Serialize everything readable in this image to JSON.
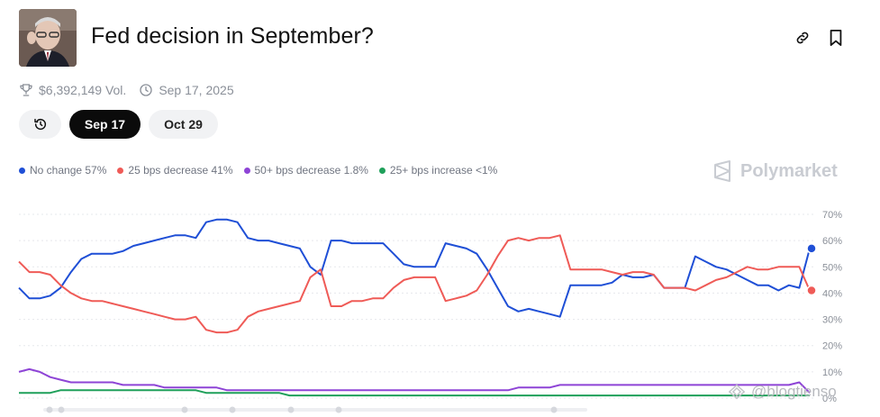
{
  "header": {
    "title": "Fed decision in September?",
    "avatar_icon": "portrait-photo"
  },
  "meta": {
    "volume": "$6,392,149 Vol.",
    "date": "Sep 17, 2025"
  },
  "tabs": [
    {
      "label": "",
      "icon": "history-icon"
    },
    {
      "label": "Sep 17",
      "active": true
    },
    {
      "label": "Oct 29"
    }
  ],
  "legend": [
    {
      "label": "No change 57%",
      "color": "#1f4fd6"
    },
    {
      "label": "25 bps decrease 41%",
      "color": "#ef5b57"
    },
    {
      "label": "50+ bps decrease 1.8%",
      "color": "#8e44d6"
    },
    {
      "label": "25+ bps increase <1%",
      "color": "#1fa05a"
    }
  ],
  "brand": "Polymarket",
  "watermark": "@blogtienso",
  "chart_data": {
    "type": "line",
    "y_ticks": [
      "70%",
      "60%",
      "50%",
      "40%",
      "30%",
      "20%",
      "10%",
      "0%"
    ],
    "ylim": [
      0,
      70
    ],
    "grid": true,
    "series": [
      {
        "name": "No change",
        "color": "#1f4fd6",
        "values": [
          42,
          38,
          38,
          39,
          42,
          48,
          53,
          55,
          55,
          55,
          56,
          58,
          59,
          60,
          61,
          62,
          62,
          61,
          67,
          68,
          68,
          67,
          61,
          60,
          60,
          59,
          58,
          57,
          50,
          47,
          60,
          60,
          59,
          59,
          59,
          59,
          55,
          51,
          50,
          50,
          50,
          59,
          58,
          57,
          55,
          49,
          42,
          35,
          33,
          34,
          33,
          32,
          31,
          43,
          43,
          43,
          43,
          44,
          47,
          46,
          46,
          47,
          42,
          42,
          42,
          54,
          52,
          50,
          49,
          47,
          45,
          43,
          43,
          41,
          43,
          42,
          57
        ]
      },
      {
        "name": "25 bps decrease",
        "color": "#ef5b57",
        "values": [
          52,
          48,
          48,
          47,
          43,
          40,
          38,
          37,
          37,
          36,
          35,
          34,
          33,
          32,
          31,
          30,
          30,
          31,
          26,
          25,
          25,
          26,
          31,
          33,
          34,
          35,
          36,
          37,
          46,
          49,
          35,
          35,
          37,
          37,
          38,
          38,
          42,
          45,
          46,
          46,
          46,
          37,
          38,
          39,
          41,
          47,
          54,
          60,
          61,
          60,
          61,
          61,
          62,
          49,
          49,
          49,
          49,
          48,
          47,
          48,
          48,
          47,
          42,
          42,
          42,
          41,
          43,
          45,
          46,
          48,
          50,
          49,
          49,
          50,
          50,
          50,
          41
        ]
      },
      {
        "name": "50+ bps decrease",
        "color": "#8e44d6",
        "values": [
          10,
          11,
          10,
          8,
          7,
          6,
          6,
          6,
          6,
          6,
          5,
          5,
          5,
          5,
          4,
          4,
          4,
          4,
          4,
          4,
          3,
          3,
          3,
          3,
          3,
          3,
          3,
          3,
          3,
          3,
          3,
          3,
          3,
          3,
          3,
          3,
          3,
          3,
          3,
          3,
          3,
          3,
          3,
          3,
          3,
          3,
          3,
          3,
          4,
          4,
          4,
          4,
          5,
          5,
          5,
          5,
          5,
          5,
          5,
          5,
          5,
          5,
          5,
          5,
          5,
          5,
          5,
          5,
          5,
          5,
          5,
          5,
          5,
          5,
          5,
          6,
          2
        ]
      },
      {
        "name": "25+ bps increase",
        "color": "#1fa05a",
        "values": [
          2,
          2,
          2,
          2,
          3,
          3,
          3,
          3,
          3,
          3,
          3,
          3,
          3,
          3,
          3,
          3,
          3,
          3,
          2,
          2,
          2,
          2,
          2,
          2,
          2,
          2,
          1,
          1,
          1,
          1,
          1,
          1,
          1,
          1,
          1,
          1,
          1,
          1,
          1,
          1,
          1,
          1,
          1,
          1,
          1,
          1,
          1,
          1,
          1,
          1,
          1,
          1,
          1,
          1,
          1,
          1,
          1,
          1,
          1,
          1,
          1,
          1,
          1,
          1,
          1,
          1,
          1,
          1,
          1,
          1,
          1,
          1,
          1,
          1,
          1,
          1,
          1
        ]
      }
    ],
    "end_markers": [
      {
        "series": "No change",
        "value": 57
      },
      {
        "series": "25 bps decrease",
        "value": 41
      }
    ]
  }
}
